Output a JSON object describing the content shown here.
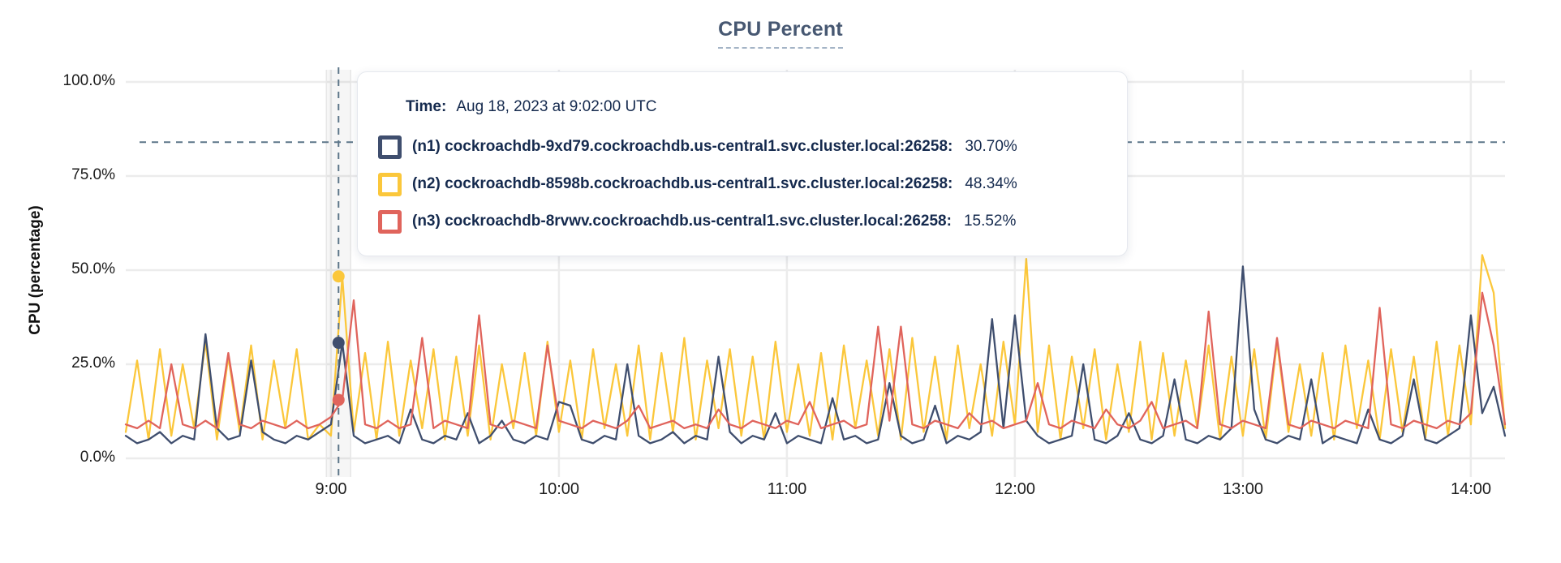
{
  "title": "CPU Percent",
  "tooltip": {
    "time_label": "Time:",
    "time_value": "Aug 18, 2023 at 9:02:00 UTC",
    "series": [
      {
        "label": "(n1) cockroachdb-9xd79.cockroachdb.us-central1.svc.cluster.local:26258:",
        "value": "30.70%"
      },
      {
        "label": "(n2) cockroachdb-8598b.cockroachdb.us-central1.svc.cluster.local:26258:",
        "value": "48.34%"
      },
      {
        "label": "(n3) cockroachdb-8rvwv.cockroachdb.us-central1.svc.cluster.local:26258:",
        "value": "15.52%"
      }
    ]
  },
  "colors": {
    "title": "#475872",
    "tooltip_text": "#152a4e",
    "grid": "#ececec",
    "crosshair": "#5d7689",
    "axis_text": "#1c1c1c"
  },
  "chart_data": {
    "type": "line",
    "title": "CPU Percent",
    "xlabel": "",
    "ylabel": "CPU (percentage)",
    "ylim": [
      0,
      100
    ],
    "grid": true,
    "legend_position": "tooltip-overlay",
    "y_tick_labels": [
      "100.0%",
      "75.0%",
      "50.0%",
      "25.0%",
      "0.0%"
    ],
    "y_tick_values": [
      100,
      75,
      50,
      25,
      0
    ],
    "x_tick_labels": [
      "9:00",
      "10:00",
      "11:00",
      "12:00",
      "13:00",
      "14:00"
    ],
    "x_tick_minutes": [
      540,
      600,
      660,
      720,
      780,
      840
    ],
    "x_range_minutes": [
      486,
      849
    ],
    "sample_step_minutes": 3,
    "cursor": {
      "minute": 542,
      "time": "9:02:00 UTC",
      "crosshair_y_percent": 84,
      "points": [
        {
          "series": "n1",
          "percent": 30.7
        },
        {
          "series": "n2",
          "percent": 48.34
        },
        {
          "series": "n3",
          "percent": 15.52
        }
      ]
    },
    "series": [
      {
        "name": "(n1) cockroachdb-9xd79.cockroachdb.us-central1.svc.cluster.local:26258",
        "color": "#3f4e6e",
        "values": [
          6,
          4,
          5,
          7,
          4,
          6,
          5,
          33,
          8,
          5,
          6,
          26,
          7,
          5,
          4,
          6,
          5,
          7,
          9,
          30.7,
          6,
          4,
          5,
          6,
          4,
          13,
          5,
          4,
          6,
          5,
          12,
          4,
          6,
          10,
          5,
          4,
          6,
          5,
          15,
          14,
          5,
          4,
          6,
          5,
          25,
          6,
          4,
          5,
          7,
          4,
          6,
          5,
          27,
          7,
          4,
          6,
          5,
          12,
          4,
          6,
          5,
          4,
          16,
          5,
          6,
          4,
          5,
          20,
          6,
          4,
          5,
          14,
          4,
          6,
          5,
          7,
          37,
          8,
          38,
          10,
          6,
          4,
          5,
          6,
          25,
          5,
          4,
          6,
          12,
          5,
          4,
          6,
          21,
          5,
          4,
          6,
          5,
          8,
          51,
          13,
          5,
          4,
          6,
          5,
          21,
          4,
          6,
          5,
          4,
          13,
          5,
          4,
          6,
          21,
          5,
          4,
          6,
          8,
          38,
          12,
          19,
          6
        ]
      },
      {
        "name": "(n2) cockroachdb-8598b.cockroachdb.us-central1.svc.cluster.local:26258",
        "color": "#fbc73b",
        "values": [
          7,
          26,
          5,
          29,
          6,
          25,
          8,
          31,
          5,
          27,
          7,
          30,
          5,
          26,
          8,
          29,
          5,
          9,
          6,
          48.3,
          7,
          28,
          5,
          31,
          6,
          26,
          8,
          29,
          5,
          27,
          6,
          30,
          5,
          25,
          8,
          28,
          6,
          31,
          7,
          26,
          5,
          29,
          8,
          25,
          6,
          30,
          5,
          28,
          7,
          32,
          5,
          26,
          8,
          29,
          6,
          27,
          5,
          31,
          7,
          25,
          6,
          28,
          5,
          30,
          8,
          26,
          6,
          29,
          5,
          32,
          7,
          27,
          5,
          30,
          8,
          25,
          6,
          31,
          9,
          53,
          7,
          30,
          5,
          27,
          8,
          29,
          5,
          25,
          7,
          31,
          5,
          28,
          6,
          26,
          8,
          30,
          5,
          27,
          6,
          29,
          5,
          31,
          7,
          25,
          6,
          28,
          5,
          30,
          8,
          26,
          5,
          29,
          7,
          27,
          5,
          31,
          6,
          30,
          9,
          54,
          44,
          8
        ]
      },
      {
        "name": "(n3) cockroachdb-8rvwv.cockroachdb.us-central1.svc.cluster.local:26258",
        "color": "#e0645c",
        "values": [
          9,
          8,
          10,
          8,
          25,
          9,
          8,
          10,
          8,
          28,
          9,
          8,
          10,
          9,
          8,
          10,
          8,
          9,
          11,
          15.5,
          42,
          9,
          8,
          10,
          8,
          9,
          32,
          8,
          10,
          9,
          8,
          38,
          9,
          8,
          10,
          9,
          8,
          30,
          10,
          9,
          8,
          10,
          9,
          8,
          10,
          14,
          8,
          9,
          10,
          8,
          9,
          8,
          13,
          9,
          8,
          10,
          9,
          8,
          10,
          9,
          15,
          8,
          9,
          10,
          8,
          9,
          35,
          10,
          35,
          9,
          8,
          10,
          9,
          8,
          12,
          9,
          10,
          8,
          9,
          10,
          20,
          9,
          8,
          10,
          9,
          8,
          13,
          9,
          8,
          10,
          15,
          8,
          9,
          10,
          8,
          39,
          9,
          8,
          10,
          9,
          8,
          32,
          9,
          8,
          10,
          9,
          8,
          10,
          9,
          8,
          40,
          9,
          8,
          10,
          9,
          8,
          10,
          9,
          12,
          44,
          30,
          9
        ]
      }
    ]
  }
}
